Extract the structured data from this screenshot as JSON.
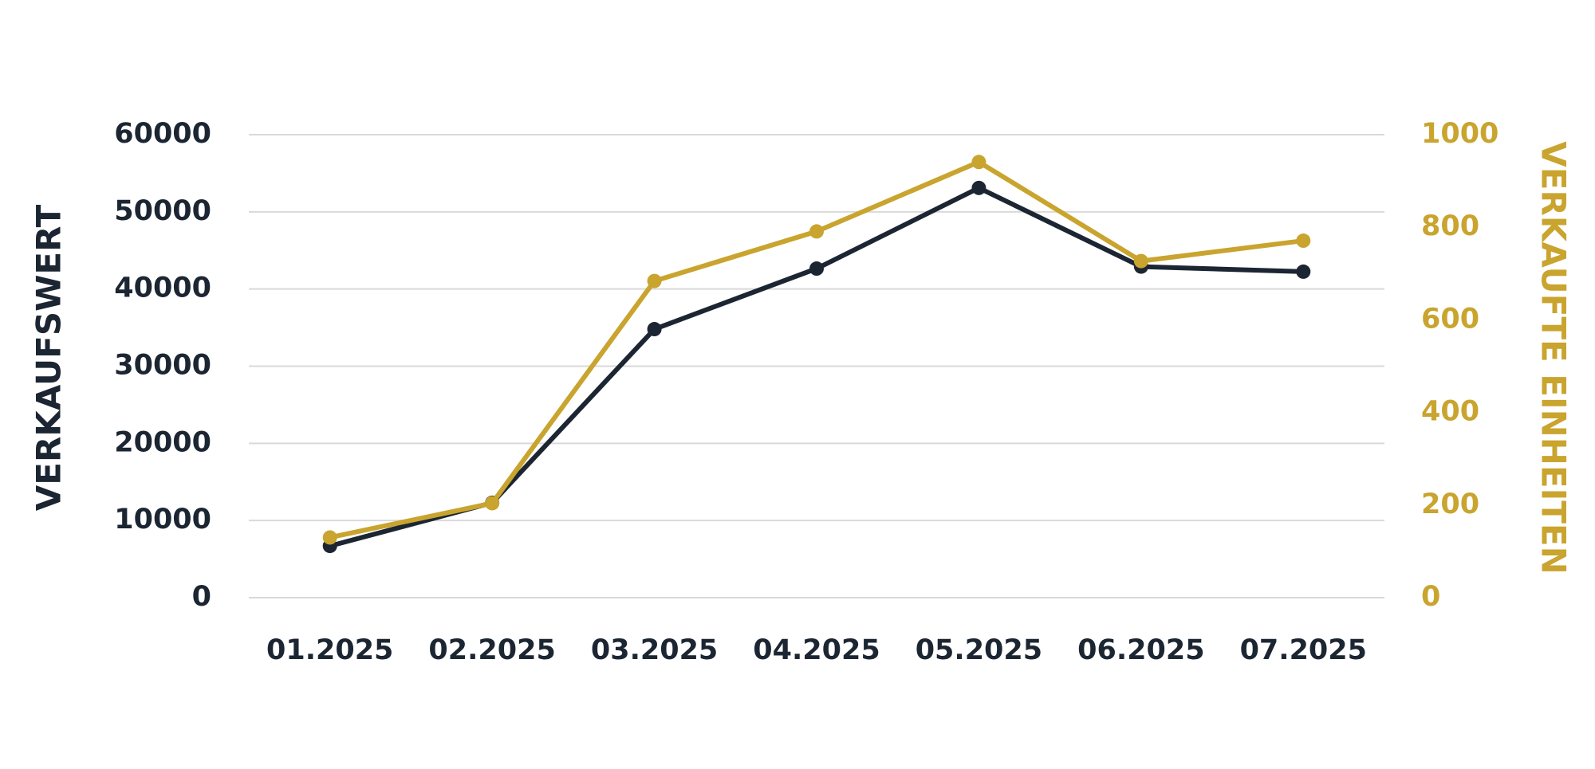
{
  "chart_data": {
    "type": "line",
    "categories": [
      "01.2025",
      "02.2025",
      "03.2025",
      "04.2025",
      "05.2025",
      "06.2025",
      "07.2025"
    ],
    "y_label": "VERKAUFSWERT",
    "y2_label": "VERKAUFTE EINHEITEN",
    "series": [
      {
        "color": "#1c2633",
        "values": [
          6700,
          12300,
          34800,
          42650,
          53100,
          42900,
          42250
        ]
      },
      {
        "color": "#c9a42e",
        "axis": "y2",
        "values": [
          130,
          204,
          684,
          791,
          941,
          727,
          771
        ]
      }
    ],
    "ylim": [
      0,
      60000
    ],
    "yticks": [
      0,
      10000,
      20000,
      30000,
      40000,
      50000,
      60000
    ],
    "y2lim": [
      0,
      1000
    ],
    "y2ticks": [
      0,
      200,
      400,
      600,
      800,
      1000
    ],
    "grid": true
  }
}
